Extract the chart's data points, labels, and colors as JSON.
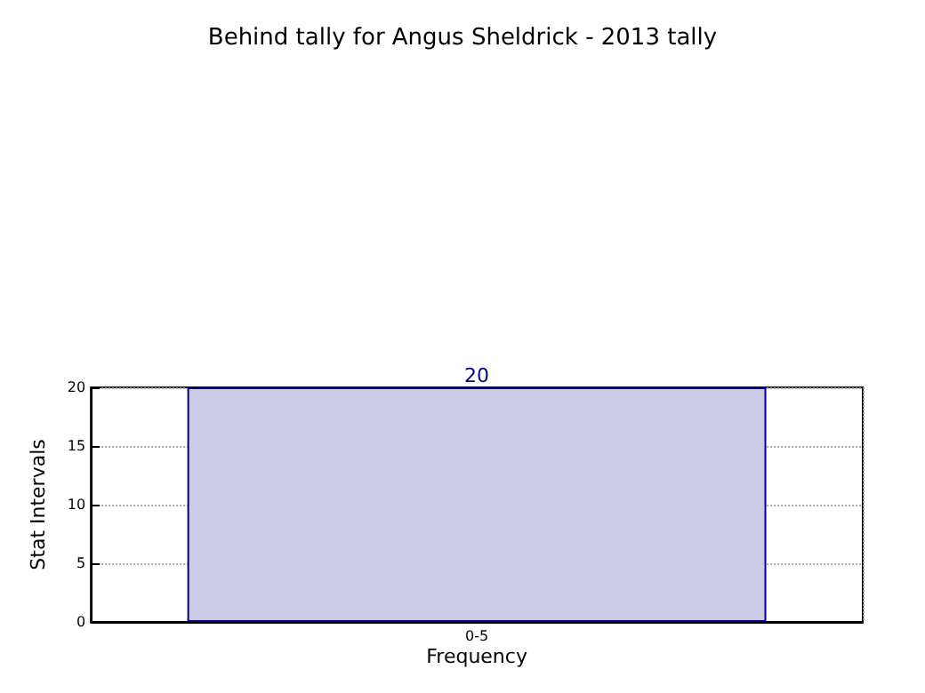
{
  "chart_data": {
    "type": "bar",
    "title": "Behind tally for Angus Sheldrick - 2013 tally",
    "xlabel": "Frequency",
    "ylabel": "Stat Intervals",
    "categories": [
      "0-5"
    ],
    "values": [
      20
    ],
    "color": "#cbcbe5",
    "ylim": [
      0,
      20
    ],
    "yticks": [
      0,
      5,
      10,
      15,
      20
    ],
    "grid": true,
    "data_labels": true
  }
}
